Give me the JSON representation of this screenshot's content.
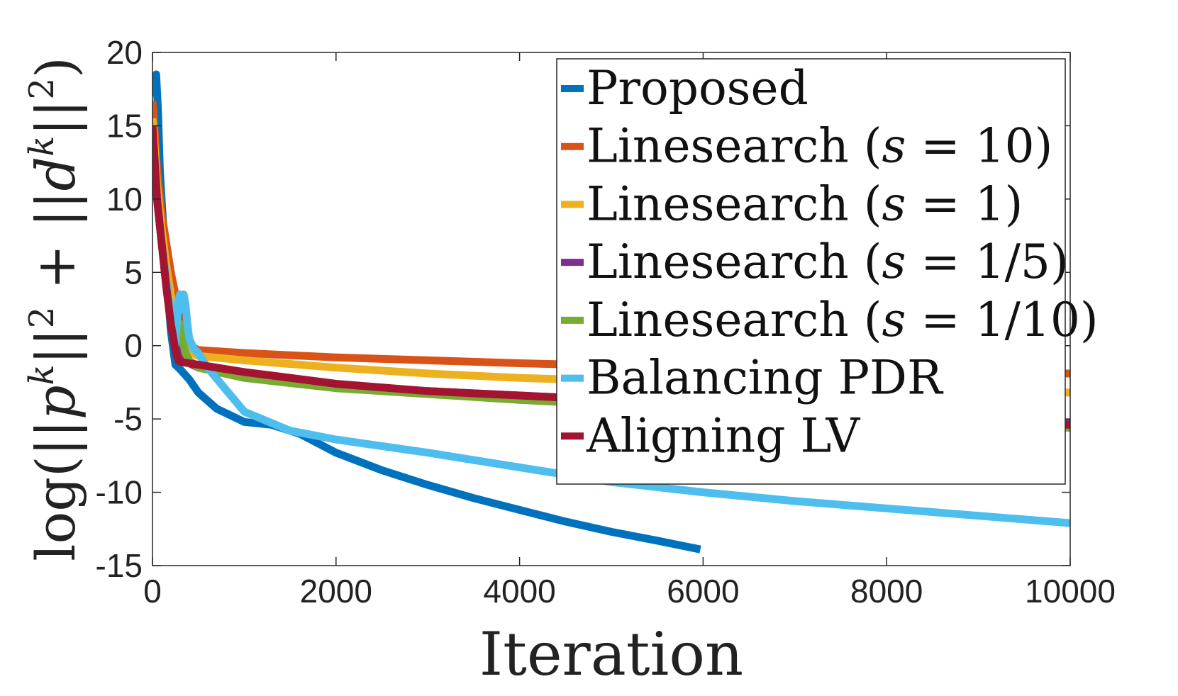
{
  "chart_data": {
    "type": "line",
    "title": "",
    "xlabel": "Iteration",
    "ylabel_parts": [
      "log(||",
      "p",
      "k",
      "||",
      "2",
      " + ||",
      "d",
      "k",
      "||",
      "2",
      ")"
    ],
    "xlim": [
      0,
      10000
    ],
    "ylim": [
      -15,
      20
    ],
    "xticks": [
      0,
      2000,
      4000,
      6000,
      8000,
      10000
    ],
    "yticks": [
      20,
      15,
      10,
      5,
      0,
      -5,
      -10,
      -15
    ],
    "xtick_labels": [
      "0",
      "2000",
      "4000",
      "6000",
      "8000",
      "10000"
    ],
    "ytick_labels": [
      "20",
      "15",
      "10",
      "5",
      "0",
      "-5",
      "-10",
      "-15"
    ],
    "grid": false,
    "legend_position": "top-right",
    "series": [
      {
        "name": "Proposed",
        "legend": {
          "pre": "Proposed",
          "math": "",
          "post": ""
        },
        "color": "#0072BD",
        "x": [
          0,
          20,
          40,
          60,
          80,
          100,
          150,
          200,
          250,
          300,
          400,
          500,
          700,
          1000,
          1300,
          1600,
          2000,
          2500,
          3000,
          3500,
          4000,
          4500,
          5000,
          5500,
          5970
        ],
        "y": [
          17,
          18.2,
          18.5,
          16,
          12,
          10,
          5,
          1,
          -1.3,
          -1.6,
          -2.3,
          -3.2,
          -4.3,
          -5.2,
          -5.4,
          -6,
          -7.3,
          -8.5,
          -9.5,
          -10.4,
          -11.2,
          -12,
          -12.7,
          -13.3,
          -13.9
        ]
      },
      {
        "name": "Linesearch (s = 10)",
        "legend": {
          "pre": "Linesearch (",
          "math": "s",
          "post": " = 10)"
        },
        "color": "#D95319",
        "x": [
          0,
          20,
          50,
          100,
          150,
          200,
          250,
          300,
          350,
          400,
          500,
          1000,
          2000,
          3000,
          4000,
          5000,
          6000,
          7000,
          8000,
          9000,
          10000
        ],
        "y": [
          16.7,
          15,
          12,
          9,
          7,
          5,
          3.5,
          2,
          0.8,
          0,
          -0.3,
          -0.5,
          -0.8,
          -1,
          -1.2,
          -1.35,
          -1.5,
          -1.6,
          -1.7,
          -1.8,
          -1.9
        ]
      },
      {
        "name": "Linesearch (s = 1)",
        "legend": {
          "pre": "Linesearch (",
          "math": "s",
          "post": " = 1)"
        },
        "color": "#EDB120",
        "x": [
          0,
          20,
          50,
          100,
          150,
          200,
          250,
          300,
          400,
          500,
          1000,
          2000,
          3000,
          4000,
          5000,
          6000,
          7000,
          8000,
          9000,
          10000
        ],
        "y": [
          15.5,
          14,
          11,
          8,
          5.5,
          3.5,
          1.5,
          0.2,
          -0.4,
          -0.7,
          -1,
          -1.5,
          -1.9,
          -2.2,
          -2.4,
          -2.6,
          -2.8,
          -2.95,
          -3.1,
          -3.2
        ]
      },
      {
        "name": "Linesearch (s = 1/5)",
        "legend": {
          "pre": "Linesearch (",
          "math": "s",
          "post": " = 1/5)"
        },
        "color": "#7E2F8E",
        "x": [
          0,
          20,
          50,
          100,
          150,
          200,
          250,
          300,
          400,
          500,
          1000,
          2000,
          3000,
          4000,
          5000,
          6000,
          7000,
          8000,
          9000,
          10000
        ],
        "y": [
          14.5,
          13,
          10,
          7,
          4.5,
          2,
          0.5,
          -0.5,
          -1.2,
          -1.5,
          -2,
          -2.7,
          -3.1,
          -3.4,
          -3.7,
          -4,
          -4.3,
          -4.7,
          -5,
          -5.3
        ]
      },
      {
        "name": "Linesearch (s = 1/10)",
        "legend": {
          "pre": "Linesearch (",
          "math": "s",
          "post": " = 1/10)"
        },
        "color": "#77AC30",
        "x": [
          0,
          20,
          50,
          100,
          150,
          200,
          250,
          300,
          330,
          360,
          400,
          500,
          1000,
          2000,
          3000,
          4000,
          5000,
          6000,
          7000,
          8000,
          9000,
          10000
        ],
        "y": [
          14.5,
          13,
          10,
          7,
          4.5,
          2,
          0.5,
          1.5,
          0.3,
          -0.5,
          -1,
          -1.5,
          -2.2,
          -2.9,
          -3.3,
          -3.7,
          -4,
          -4.3,
          -4.6,
          -5,
          -5.3,
          -5.6
        ]
      },
      {
        "name": "Balancing PDR",
        "legend": {
          "pre": "Balancing PDR",
          "math": "",
          "post": ""
        },
        "color": "#4DBEEE",
        "x": [
          0,
          20,
          50,
          100,
          150,
          200,
          250,
          280,
          300,
          320,
          340,
          360,
          380,
          400,
          450,
          500,
          600,
          800,
          1000,
          1500,
          2000,
          3000,
          4000,
          5000,
          6000,
          7000,
          8000,
          9000,
          10000
        ],
        "y": [
          14.5,
          13,
          10,
          7,
          4.5,
          2,
          0,
          3,
          3.5,
          2.5,
          3.5,
          2.8,
          1.5,
          0.5,
          -0.2,
          -0.5,
          -1.5,
          -3,
          -4.5,
          -5.8,
          -6.4,
          -7.3,
          -8.3,
          -9.3,
          -10,
          -10.6,
          -11.1,
          -11.6,
          -12.1
        ]
      },
      {
        "name": "Aligning LV",
        "legend": {
          "pre": "Aligning LV",
          "math": "",
          "post": ""
        },
        "color": "#A2142F",
        "x": [
          0,
          20,
          50,
          100,
          150,
          200,
          250,
          280,
          300,
          400,
          500,
          1000,
          2000,
          3000,
          4000,
          5000,
          6000,
          7000,
          8000,
          9000,
          10000
        ],
        "y": [
          15,
          13,
          10,
          7,
          4,
          1.5,
          -0.3,
          -1,
          -1.1,
          -1.2,
          -1.3,
          -1.8,
          -2.6,
          -3.1,
          -3.4,
          -3.7,
          -4.1,
          -4.4,
          -4.8,
          -5.1,
          -5.4
        ]
      }
    ]
  }
}
